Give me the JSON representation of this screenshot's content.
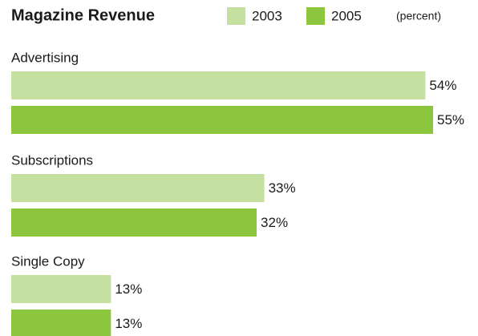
{
  "chart_data": {
    "type": "bar",
    "orientation": "horizontal",
    "title": "Magazine Revenue",
    "subtitle": "(percent)",
    "categories": [
      "Advertising",
      "Subscriptions",
      "Single Copy"
    ],
    "series": [
      {
        "name": "2003",
        "color": "#c6e0a1",
        "values": [
          54,
          33,
          13
        ],
        "value_labels": [
          "54%",
          "33%",
          "13%"
        ]
      },
      {
        "name": "2005",
        "color": "#8cc63f",
        "values": [
          55,
          32,
          13
        ],
        "value_labels": [
          "55%",
          "32%",
          "13%"
        ]
      }
    ]
  }
}
